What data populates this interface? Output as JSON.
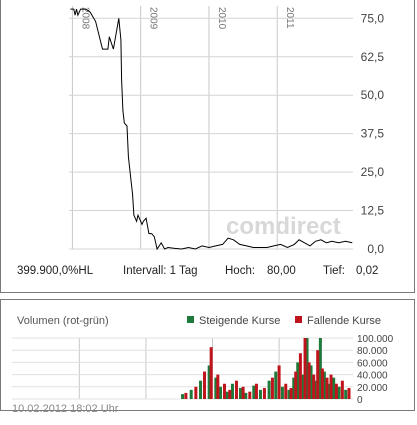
{
  "chart_data": [
    {
      "type": "line",
      "x_ticks": [
        "2008",
        "2009",
        "2010",
        "2011"
      ],
      "y_ticks": [
        "75,0",
        "62,5",
        "50,0",
        "37,5",
        "25,0",
        "12,5",
        "0,0"
      ],
      "ylim": [
        0,
        79
      ],
      "xlim": [
        2007.95,
        2012.11
      ],
      "grid": true,
      "series": [
        {
          "x": [
            2007.97,
            2008.02,
            2008.04,
            2008.06,
            2008.08,
            2008.12,
            2008.2,
            2008.26,
            2008.34,
            2008.44,
            2008.48,
            2008.52,
            2008.54,
            2008.6,
            2008.68,
            2008.71,
            2008.72,
            2008.74,
            2008.76,
            2008.8,
            2008.82,
            2008.86,
            2008.88,
            2008.9,
            2008.94,
            2008.96,
            2009.0,
            2009.02,
            2009.04,
            2009.08,
            2009.12,
            2009.16,
            2009.2,
            2009.24,
            2009.3,
            2009.35,
            2009.4,
            2009.5,
            2009.6,
            2009.7,
            2009.8,
            2009.9,
            2010.0,
            2010.1,
            2010.2,
            2010.28,
            2010.36,
            2010.45,
            2010.55,
            2010.65,
            2010.75,
            2010.85,
            2010.95,
            2011.05,
            2011.15,
            2011.25,
            2011.32,
            2011.4,
            2011.48,
            2011.56,
            2011.64,
            2011.72,
            2011.8,
            2011.9,
            2012.0,
            2012.1
          ],
          "y": [
            78,
            78,
            76,
            78,
            76,
            78,
            78,
            77,
            74,
            65,
            65,
            65,
            69,
            65,
            75,
            68,
            55,
            45,
            41,
            40,
            30,
            22,
            18,
            11,
            9,
            11,
            9,
            8,
            9,
            10,
            5,
            5,
            4,
            0,
            2,
            0,
            0.5,
            0.2,
            0,
            0.5,
            0,
            1,
            0.5,
            1,
            1.5,
            3.5,
            3,
            1.5,
            1,
            0.5,
            0.5,
            0.5,
            1,
            1.5,
            0.5,
            1.5,
            3,
            2,
            1,
            2.5,
            3,
            2,
            2.5,
            2,
            2.5,
            2
          ]
        }
      ]
    },
    {
      "type": "bar",
      "title": "Volumen (rot-grün)",
      "y_ticks": [
        "100.000",
        "80.000",
        "60.000",
        "40.000",
        "20.000",
        "0"
      ],
      "ylim": [
        0,
        100000
      ],
      "xlim": [
        2007.95,
        2012.11
      ],
      "grid": true,
      "legend": [
        {
          "label": "Steigende Kurse",
          "color": "#1e7a3a"
        },
        {
          "label": "Fallende Kurse",
          "color": "#c0141c"
        }
      ],
      "legend_position": "top-right",
      "series": [
        {
          "name": "Steigende Kurse",
          "x": [
            2009.55,
            2009.68,
            2009.82,
            2009.95,
            2010.05,
            2010.12,
            2010.22,
            2010.3,
            2010.42,
            2010.5,
            2010.62,
            2010.72,
            2010.85,
            2010.95,
            2011.05,
            2011.15,
            2011.22,
            2011.28,
            2011.36,
            2011.42,
            2011.48,
            2011.55,
            2011.62,
            2011.68,
            2011.75,
            2011.82,
            2011.9,
            2012.0
          ],
          "values": [
            8000,
            15000,
            30000,
            55000,
            35000,
            20000,
            12000,
            25000,
            18000,
            10000,
            22000,
            15000,
            30000,
            45000,
            20000,
            15000,
            35000,
            60000,
            40000,
            100000,
            55000,
            30000,
            100000,
            45000,
            25000,
            35000,
            20000,
            15000
          ]
        },
        {
          "name": "Fallende Kurse",
          "x": [
            2009.6,
            2009.75,
            2009.88,
            2009.98,
            2010.08,
            2010.18,
            2010.26,
            2010.36,
            2010.46,
            2010.56,
            2010.66,
            2010.78,
            2010.9,
            2011.0,
            2011.1,
            2011.18,
            2011.25,
            2011.32,
            2011.39,
            2011.45,
            2011.52,
            2011.58,
            2011.65,
            2011.72,
            2011.78,
            2011.86,
            2011.95,
            2012.05
          ],
          "values": [
            10000,
            20000,
            45000,
            85000,
            40000,
            25000,
            15000,
            30000,
            20000,
            12000,
            25000,
            18000,
            35000,
            55000,
            25000,
            18000,
            45000,
            75000,
            100000,
            60000,
            40000,
            80000,
            50000,
            35000,
            40000,
            25000,
            30000,
            18000
          ]
        }
      ]
    }
  ],
  "info": {
    "volume": "399.900,0%HL",
    "interval": "Intervall: 1 Tag",
    "high_label": "Hoch:",
    "high_value": "80,00",
    "low_label": "Tief:",
    "low_value": "0,02"
  },
  "watermark": {
    "part1": "com",
    "part2": "direct"
  },
  "timestamp": "10.02.2012 18:02 Uhr",
  "colors": {
    "line": "#000000",
    "rising": "#1e7a3a",
    "falling": "#c0141c",
    "grid": "#c8c8c8"
  }
}
